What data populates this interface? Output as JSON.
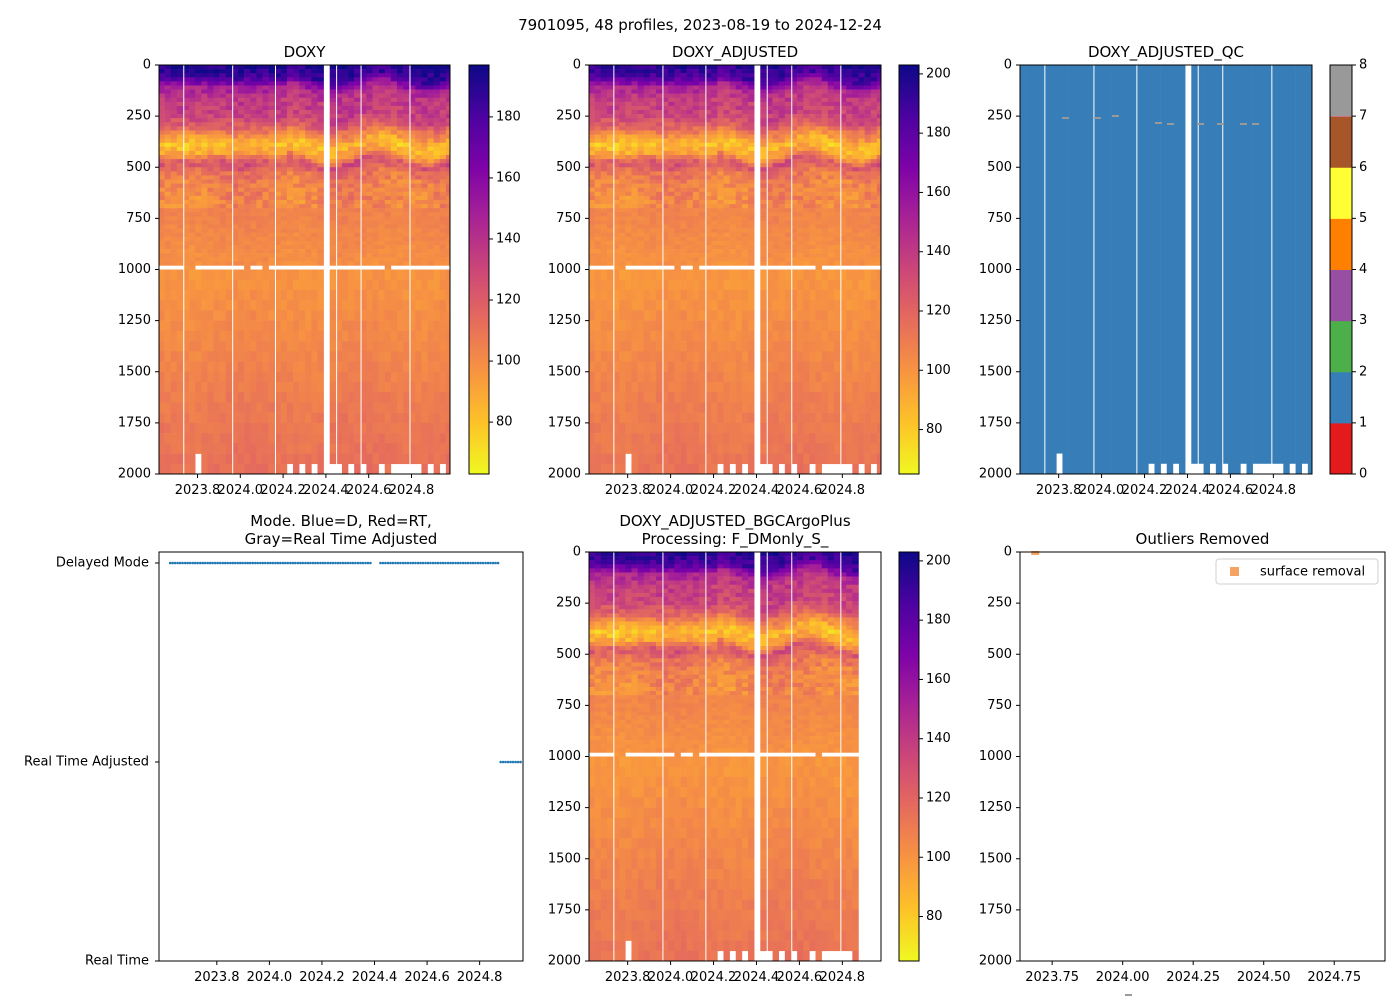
{
  "figure_title": "7901095, 48 profiles, 2023-08-19 to 2024-12-24",
  "colors": {
    "accent": "#1f77b4",
    "outlier": "#f4a460",
    "qc_good": "#377eb8"
  },
  "chart_data": [
    {
      "id": "doxy",
      "type": "heatmap",
      "title": "DOXY",
      "xlim": [
        2023.62,
        2024.98
      ],
      "ylim": [
        2000,
        0
      ],
      "xticks": [
        "2023.8",
        "2024.0",
        "2024.2",
        "2024.4",
        "2024.6",
        "2024.8"
      ],
      "yticks": [
        "0",
        "250",
        "500",
        "750",
        "1000",
        "1250",
        "1500",
        "1750",
        "2000"
      ],
      "colorbar": {
        "cmap": "plasma_r",
        "range": [
          63,
          197
        ],
        "ticks": [
          "80",
          "100",
          "120",
          "140",
          "160",
          "180"
        ]
      },
      "profile_depths": [
        0,
        60,
        110,
        160,
        250,
        330,
        390,
        430,
        480,
        540,
        620,
        800,
        980,
        1000,
        1400,
        1750,
        2000
      ],
      "profile_values": [
        195,
        185,
        150,
        138,
        134,
        110,
        85,
        95,
        130,
        112,
        108,
        104,
        100,
        98,
        104,
        110,
        113
      ],
      "n_profiles": 48
    },
    {
      "id": "doxy_adjusted",
      "type": "heatmap",
      "title": "DOXY_ADJUSTED",
      "xlim": [
        2023.62,
        2024.98
      ],
      "ylim": [
        2000,
        0
      ],
      "xticks": [
        "2023.8",
        "2024.0",
        "2024.2",
        "2024.4",
        "2024.6",
        "2024.8"
      ],
      "yticks": [
        "0",
        "250",
        "500",
        "750",
        "1000",
        "1250",
        "1500",
        "1750",
        "2000"
      ],
      "colorbar": {
        "cmap": "plasma_r",
        "range": [
          65,
          203
        ],
        "ticks": [
          "80",
          "100",
          "120",
          "140",
          "160",
          "180",
          "200"
        ]
      }
    },
    {
      "id": "doxy_adjusted_qc",
      "type": "heatmap",
      "title": "DOXY_ADJUSTED_QC",
      "xlim": [
        2023.62,
        2024.98
      ],
      "ylim": [
        2000,
        0
      ],
      "xticks": [
        "2023.8",
        "2024.0",
        "2024.2",
        "2024.4",
        "2024.6",
        "2024.8"
      ],
      "yticks": [
        "0",
        "250",
        "500",
        "750",
        "1000",
        "1250",
        "1500",
        "1750",
        "2000"
      ],
      "colorbar": {
        "cmap": "Set1",
        "range": [
          0,
          8
        ],
        "ticks": [
          "0",
          "1",
          "2",
          "3",
          "4",
          "5",
          "6",
          "7",
          "8"
        ],
        "segments": [
          "#e41a1c",
          "#377eb8",
          "#4daf4a",
          "#984ea3",
          "#ff7f00",
          "#ffff33",
          "#a65628",
          "#f781bf",
          "#999999"
        ]
      },
      "dominant_value": 1
    },
    {
      "id": "mode",
      "type": "scatter",
      "title_line1": "Mode. Blue=D, Red=RT,",
      "title_line2": "Gray=Real Time Adjusted",
      "xlim": [
        2023.58,
        2024.965
      ],
      "xticks": [
        "2023.8",
        "2024.0",
        "2024.2",
        "2024.4",
        "2024.6",
        "2024.8"
      ],
      "yticks": [
        "Delayed Mode",
        "Real Time Adjusted",
        "Real Time"
      ],
      "delayed_until": 2024.87
    },
    {
      "id": "bgcargoplus",
      "type": "heatmap",
      "title_line1": "DOXY_ADJUSTED_BGCArgoPlus",
      "title_line2": "Processing: F_DMonly_S_",
      "xlim": [
        2023.62,
        2024.98
      ],
      "ylim": [
        2000,
        0
      ],
      "xticks": [
        "2023.8",
        "2024.0",
        "2024.2",
        "2024.4",
        "2024.6",
        "2024.8"
      ],
      "yticks": [
        "0",
        "250",
        "500",
        "750",
        "1000",
        "1250",
        "1500",
        "1750",
        "2000"
      ],
      "colorbar": {
        "cmap": "plasma_r",
        "range": [
          65,
          203
        ],
        "ticks": [
          "80",
          "100",
          "120",
          "140",
          "160",
          "180",
          "200"
        ]
      },
      "last_time": 2024.87
    },
    {
      "id": "outliers",
      "type": "scatter",
      "title": "Outliers Removed",
      "xlim": [
        2023.636,
        2024.93
      ],
      "ylim": [
        2000,
        0
      ],
      "xticks": [
        "2023.75",
        "2024.00",
        "2024.25",
        "2024.50",
        "2024.75"
      ],
      "yticks": [
        "0",
        "250",
        "500",
        "750",
        "1000",
        "1250",
        "1500",
        "1750",
        "2000"
      ],
      "legend": {
        "label": "surface removal",
        "placement": "top-right"
      },
      "points": [
        {
          "x": 2023.69,
          "y": 0
        }
      ]
    }
  ]
}
